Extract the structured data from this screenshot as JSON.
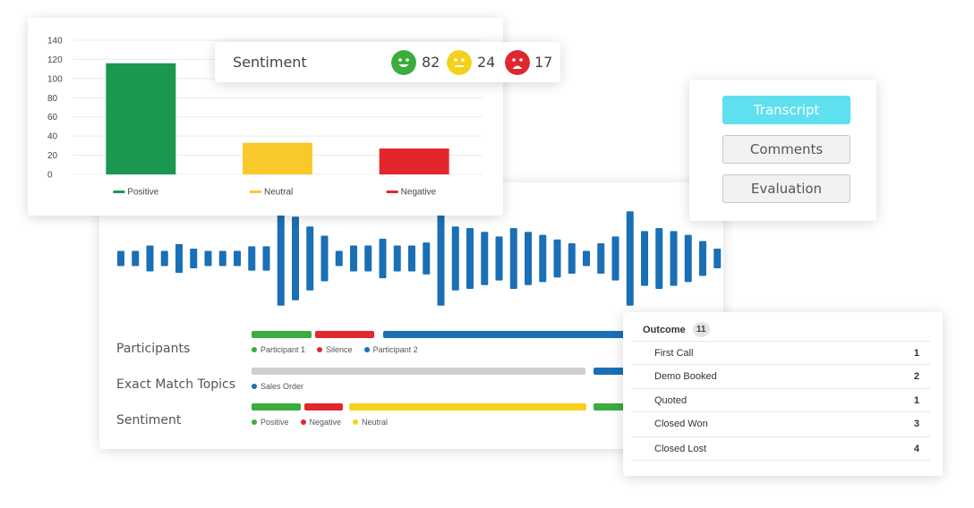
{
  "chart_data": {
    "type": "bar",
    "categories": [
      "Positive",
      "Neutral",
      "Negative"
    ],
    "values": [
      116,
      33,
      27
    ],
    "colors": [
      "#1a9850",
      "#f9c92c",
      "#e3262e"
    ],
    "ylim": [
      0,
      140
    ],
    "yticks": [
      "140",
      "120",
      "100",
      "80",
      "60",
      "40",
      "20",
      "0"
    ],
    "legend_position": "bottom",
    "grid": true
  },
  "sentiment": {
    "title": "Sentiment",
    "items": [
      {
        "icon": "happy-face-icon",
        "value": "82",
        "color": "#3aad3e"
      },
      {
        "icon": "neutral-face-icon",
        "value": "24",
        "color": "#f6d11b"
      },
      {
        "icon": "sad-face-icon",
        "value": "17",
        "color": "#e1262d"
      }
    ]
  },
  "tabs": [
    {
      "label": "Transcript",
      "active": true
    },
    {
      "label": "Comments",
      "active": false
    },
    {
      "label": "Evaluation",
      "active": false
    }
  ],
  "tracks": {
    "participants": {
      "label": "Participants",
      "legend": [
        {
          "label": "Participant 1",
          "color": "#3aad3e"
        },
        {
          "label": "Silence",
          "color": "#e1262d"
        },
        {
          "label": "Participant 2",
          "color": "#1a6fb5"
        }
      ]
    },
    "topics": {
      "label": "Exact Match Topics",
      "legend": [
        {
          "label": "Sales Order",
          "color": "#1a6fb5"
        }
      ]
    },
    "sentiment": {
      "label": "Sentiment",
      "legend": [
        {
          "label": "Positive",
          "color": "#3aad3e"
        },
        {
          "label": "Negative",
          "color": "#e1262d"
        },
        {
          "label": "Neutral",
          "color": "#f6d11b"
        }
      ]
    }
  },
  "outcome": {
    "title": "Outcome",
    "count": "11",
    "rows": [
      {
        "label": "First Call",
        "value": "1"
      },
      {
        "label": "Demo Booked",
        "value": "2"
      },
      {
        "label": "Quoted",
        "value": "1"
      },
      {
        "label": "Closed Won",
        "value": "3"
      },
      {
        "label": "Closed Lost",
        "value": "4"
      }
    ]
  },
  "waveform": {
    "color": "#1a6fb5",
    "levels": [
      0.1,
      0.1,
      0.17,
      0.1,
      0.19,
      0.13,
      0.1,
      0.1,
      0.1,
      0.16,
      0.16,
      0.62,
      0.55,
      0.42,
      0.3,
      0.1,
      0.17,
      0.17,
      0.26,
      0.17,
      0.17,
      0.21,
      0.62,
      0.42,
      0.4,
      0.35,
      0.29,
      0.4,
      0.35,
      0.31,
      0.25,
      0.2,
      0.1,
      0.2,
      0.29,
      0.62,
      0.36,
      0.4,
      0.36,
      0.31,
      0.23,
      0.13
    ]
  }
}
